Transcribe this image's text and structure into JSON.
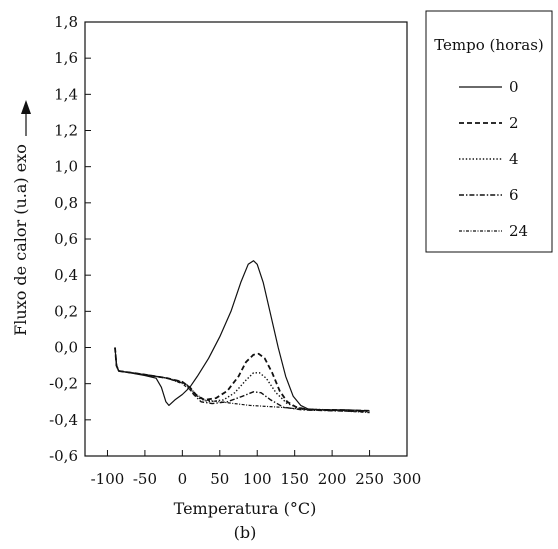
{
  "chart_data": {
    "type": "line",
    "caption": "(b)",
    "xlabel": "Temperatura (°C)",
    "ylabel": "Fluxo de calor (u.a) exo",
    "xlim": [
      -130,
      300
    ],
    "ylim": [
      -0.6,
      1.8
    ],
    "xticks": [
      -100,
      -50,
      0,
      50,
      100,
      150,
      200,
      250,
      300
    ],
    "xtick_labels": [
      "-100",
      "-50",
      "0",
      "50",
      "100",
      "150",
      "200",
      "250",
      "300"
    ],
    "yticks": [
      -0.6,
      -0.4,
      -0.2,
      0.0,
      0.2,
      0.4,
      0.6,
      0.8,
      1.0,
      1.2,
      1.4,
      1.6,
      1.8
    ],
    "ytick_labels": [
      "-0,6",
      "-0,4",
      "-0,2",
      "0,0",
      "0,2",
      "0,4",
      "0,6",
      "0,8",
      "1,0",
      "1,2",
      "1,4",
      "1,6",
      "1,8"
    ],
    "legend": {
      "title": "Tempo (horas)",
      "placement": "right, outside plot"
    },
    "series": [
      {
        "name": "0",
        "dash": "solid",
        "points": [
          [
            -90,
            0.0
          ],
          [
            -88,
            -0.1
          ],
          [
            -85,
            -0.13
          ],
          [
            -70,
            -0.14
          ],
          [
            -50,
            -0.155
          ],
          [
            -35,
            -0.17
          ],
          [
            -28,
            -0.22
          ],
          [
            -22,
            -0.3
          ],
          [
            -18,
            -0.32
          ],
          [
            -10,
            -0.29
          ],
          [
            0,
            -0.26
          ],
          [
            10,
            -0.22
          ],
          [
            20,
            -0.16
          ],
          [
            35,
            -0.06
          ],
          [
            50,
            0.06
          ],
          [
            65,
            0.2
          ],
          [
            78,
            0.36
          ],
          [
            88,
            0.46
          ],
          [
            95,
            0.48
          ],
          [
            100,
            0.46
          ],
          [
            108,
            0.36
          ],
          [
            118,
            0.18
          ],
          [
            128,
            0.0
          ],
          [
            138,
            -0.16
          ],
          [
            148,
            -0.27
          ],
          [
            158,
            -0.32
          ],
          [
            168,
            -0.34
          ],
          [
            190,
            -0.345
          ],
          [
            220,
            -0.345
          ],
          [
            250,
            -0.35
          ]
        ]
      },
      {
        "name": "2",
        "dash": "dashed",
        "points": [
          [
            -90,
            0.0
          ],
          [
            -88,
            -0.1
          ],
          [
            -85,
            -0.13
          ],
          [
            -50,
            -0.15
          ],
          [
            -20,
            -0.17
          ],
          [
            0,
            -0.19
          ],
          [
            10,
            -0.22
          ],
          [
            20,
            -0.27
          ],
          [
            30,
            -0.29
          ],
          [
            45,
            -0.28
          ],
          [
            60,
            -0.24
          ],
          [
            75,
            -0.16
          ],
          [
            85,
            -0.08
          ],
          [
            95,
            -0.04
          ],
          [
            102,
            -0.035
          ],
          [
            110,
            -0.06
          ],
          [
            120,
            -0.14
          ],
          [
            130,
            -0.24
          ],
          [
            140,
            -0.3
          ],
          [
            152,
            -0.33
          ],
          [
            170,
            -0.345
          ],
          [
            200,
            -0.345
          ],
          [
            250,
            -0.35
          ]
        ]
      },
      {
        "name": "4",
        "dash": "dotted",
        "points": [
          [
            -90,
            0.0
          ],
          [
            -88,
            -0.1
          ],
          [
            -85,
            -0.13
          ],
          [
            -50,
            -0.15
          ],
          [
            -20,
            -0.17
          ],
          [
            0,
            -0.19
          ],
          [
            10,
            -0.22
          ],
          [
            22,
            -0.28
          ],
          [
            35,
            -0.3
          ],
          [
            55,
            -0.29
          ],
          [
            70,
            -0.25
          ],
          [
            85,
            -0.18
          ],
          [
            95,
            -0.14
          ],
          [
            103,
            -0.14
          ],
          [
            112,
            -0.17
          ],
          [
            125,
            -0.25
          ],
          [
            140,
            -0.31
          ],
          [
            160,
            -0.34
          ],
          [
            200,
            -0.345
          ],
          [
            250,
            -0.35
          ]
        ]
      },
      {
        "name": "6",
        "dash": "dash-dot",
        "points": [
          [
            -90,
            0.0
          ],
          [
            -88,
            -0.1
          ],
          [
            -85,
            -0.13
          ],
          [
            -50,
            -0.15
          ],
          [
            -20,
            -0.17
          ],
          [
            -5,
            -0.19
          ],
          [
            5,
            -0.2
          ],
          [
            15,
            -0.26
          ],
          [
            25,
            -0.3
          ],
          [
            40,
            -0.31
          ],
          [
            60,
            -0.3
          ],
          [
            80,
            -0.27
          ],
          [
            95,
            -0.245
          ],
          [
            105,
            -0.25
          ],
          [
            118,
            -0.29
          ],
          [
            135,
            -0.33
          ],
          [
            160,
            -0.345
          ],
          [
            200,
            -0.35
          ],
          [
            250,
            -0.355
          ]
        ]
      },
      {
        "name": "24",
        "dash": "fine dash-dot",
        "points": [
          [
            -90,
            0.0
          ],
          [
            -88,
            -0.1
          ],
          [
            -85,
            -0.13
          ],
          [
            -50,
            -0.15
          ],
          [
            -20,
            -0.17
          ],
          [
            0,
            -0.2
          ],
          [
            15,
            -0.25
          ],
          [
            30,
            -0.29
          ],
          [
            50,
            -0.3
          ],
          [
            90,
            -0.32
          ],
          [
            130,
            -0.33
          ],
          [
            170,
            -0.345
          ],
          [
            210,
            -0.35
          ],
          [
            250,
            -0.36
          ]
        ]
      }
    ]
  }
}
